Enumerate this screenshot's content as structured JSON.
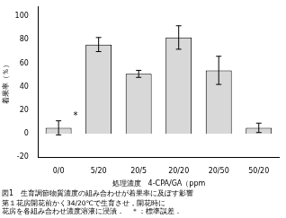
{
  "chart_data": {
    "type": "bar",
    "title": "図1　生育調節物質濃度の組み合わせが着果率に及ぼす影響",
    "subtitle": [
      "第１花房開花前かく34/20℃で生育させ，開花時に",
      "花房を各組み合わせ濃度溶液に浸漬．　＊：標準誤差．"
    ],
    "xlabel": "処理濃度　4-CPA/GA（ppm",
    "ylabel": "着果率（％）",
    "categories": [
      "0/0",
      "5/20",
      "20/5",
      "20/20",
      "20/50",
      "50/20"
    ],
    "values": [
      5,
      76,
      51,
      82,
      54,
      5
    ],
    "errors": [
      6,
      6,
      3,
      10,
      12,
      4
    ],
    "color": "#d8d8d8",
    "ylim": [
      -20,
      108
    ],
    "yticks": [
      -20,
      0,
      20,
      40,
      60,
      80,
      100
    ],
    "grid": false,
    "annotations": [
      {
        "text": "*",
        "category": "0/0"
      }
    ]
  }
}
